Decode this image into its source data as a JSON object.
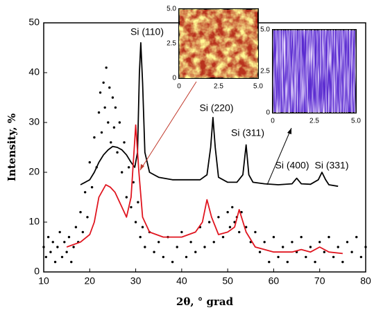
{
  "chart_data": {
    "type": "line",
    "xlabel": "2θ, ° grad",
    "ylabel": "Intensity, %",
    "xlim": [
      10,
      80
    ],
    "ylim": [
      0,
      50
    ],
    "xticks": [
      10,
      20,
      30,
      40,
      50,
      60,
      70,
      80
    ],
    "yticks": [
      0,
      10,
      20,
      30,
      40,
      50
    ],
    "series": [
      {
        "type": "scatter",
        "color": "#000000",
        "x": [
          10,
          10.5,
          11,
          11.5,
          12,
          12.5,
          13,
          13.5,
          14,
          14.5,
          15,
          15.5,
          16,
          16.5,
          17,
          17.5,
          18,
          18.5,
          19,
          19.5,
          20,
          20.5,
          21,
          21.5,
          22,
          22.3,
          22.6,
          23,
          23.3,
          23.6,
          24,
          24.3,
          24.6,
          25,
          25.3,
          25.6,
          26,
          26.5,
          27,
          27.5,
          28,
          28.5,
          29,
          29.5,
          30,
          30.5,
          31,
          31.5,
          32,
          33,
          34,
          35,
          36,
          37,
          38,
          39,
          40,
          41,
          42,
          43,
          44,
          45,
          46,
          47,
          48,
          49,
          50,
          50.5,
          51,
          51.5,
          52,
          52.5,
          53,
          54,
          55,
          56,
          57,
          58,
          59,
          60,
          61,
          62,
          63,
          64,
          65,
          66,
          67,
          68,
          69,
          70,
          71,
          72,
          73,
          74,
          75,
          76,
          77,
          78,
          79,
          80
        ],
        "values": [
          5,
          3,
          7,
          4,
          6,
          2,
          5,
          8,
          3,
          6,
          4,
          7,
          2,
          5,
          9,
          6,
          12,
          8,
          16,
          11,
          22,
          17,
          27,
          21,
          32,
          36,
          28,
          38,
          33,
          41,
          30,
          37,
          26,
          35,
          29,
          33,
          24,
          30,
          20,
          26,
          15,
          21,
          13,
          18,
          10,
          14,
          7,
          9,
          5,
          8,
          4,
          6,
          3,
          7,
          2,
          5,
          8,
          3,
          6,
          4,
          9,
          5,
          10,
          6,
          11,
          7,
          12,
          9,
          13,
          10,
          11,
          8,
          12,
          9,
          6,
          8,
          4,
          6,
          2,
          7,
          3,
          5,
          2,
          6,
          4,
          7,
          3,
          5,
          2,
          6,
          4,
          7,
          3,
          5,
          2,
          6,
          4,
          7,
          3,
          5
        ]
      },
      {
        "type": "line",
        "color": "#000000",
        "x": [
          18,
          19,
          20,
          21,
          22,
          23,
          24,
          25,
          26,
          27,
          28,
          29,
          29.8,
          30.4,
          30.8,
          31.1,
          31.5,
          32,
          33,
          35,
          38,
          41,
          44,
          45.5,
          46.3,
          46.8,
          47.3,
          48,
          50,
          52,
          53.3,
          54,
          54.6,
          55.5,
          58,
          61,
          64,
          65,
          66,
          68,
          69.7,
          70.5,
          71.3,
          72,
          74
        ],
        "values": [
          17.5,
          18,
          18.5,
          20,
          22,
          23.5,
          24.5,
          25.2,
          25,
          24.5,
          23.5,
          22,
          21,
          24,
          40,
          46,
          38,
          24,
          20,
          19,
          18.5,
          18.5,
          18.5,
          19.5,
          25,
          31,
          25,
          19,
          18,
          18,
          19.5,
          25.5,
          19.5,
          18,
          17.7,
          17.5,
          17.7,
          18.8,
          17.7,
          17.6,
          18.5,
          20,
          18.5,
          17.5,
          17.2
        ]
      },
      {
        "type": "line",
        "color": "#e0141e",
        "x": [
          15,
          18,
          20,
          21,
          22,
          23.5,
          24.5,
          25.5,
          27,
          28,
          29,
          30,
          30.7,
          31.5,
          33,
          36,
          40,
          43,
          44.5,
          45.5,
          46.5,
          48,
          50,
          51.5,
          52.5,
          54,
          56,
          60,
          64,
          66,
          68,
          70,
          72,
          75
        ],
        "values": [
          5,
          6,
          7.5,
          10,
          15,
          17.5,
          17,
          16,
          13,
          11,
          15,
          29.5,
          20,
          11,
          8,
          7,
          7,
          8,
          10,
          14.5,
          11,
          7.5,
          8,
          9,
          12.5,
          8,
          5,
          4,
          4,
          4.5,
          4,
          5,
          4,
          3.7
        ]
      }
    ],
    "annotations": [
      "Si (110)",
      "Si (220)",
      "Si (311)",
      "Si (400)",
      "Si (331)"
    ],
    "insets": [
      {
        "xlim": [
          0,
          5
        ],
        "ylim": [
          0,
          5
        ],
        "xticks": [
          0,
          2.5,
          {
            "value": 5,
            "label": "5.0"
          }
        ],
        "yticks": [
          0,
          2.5,
          {
            "value": 5,
            "label": "5.0"
          }
        ]
      },
      {
        "xlim": [
          0,
          5
        ],
        "ylim": [
          0,
          5
        ],
        "xticks": [
          0,
          2.5,
          {
            "value": 5,
            "label": "5.0"
          }
        ],
        "yticks": [
          0,
          2.5,
          {
            "value": 5,
            "label": "5.0"
          }
        ]
      }
    ]
  }
}
